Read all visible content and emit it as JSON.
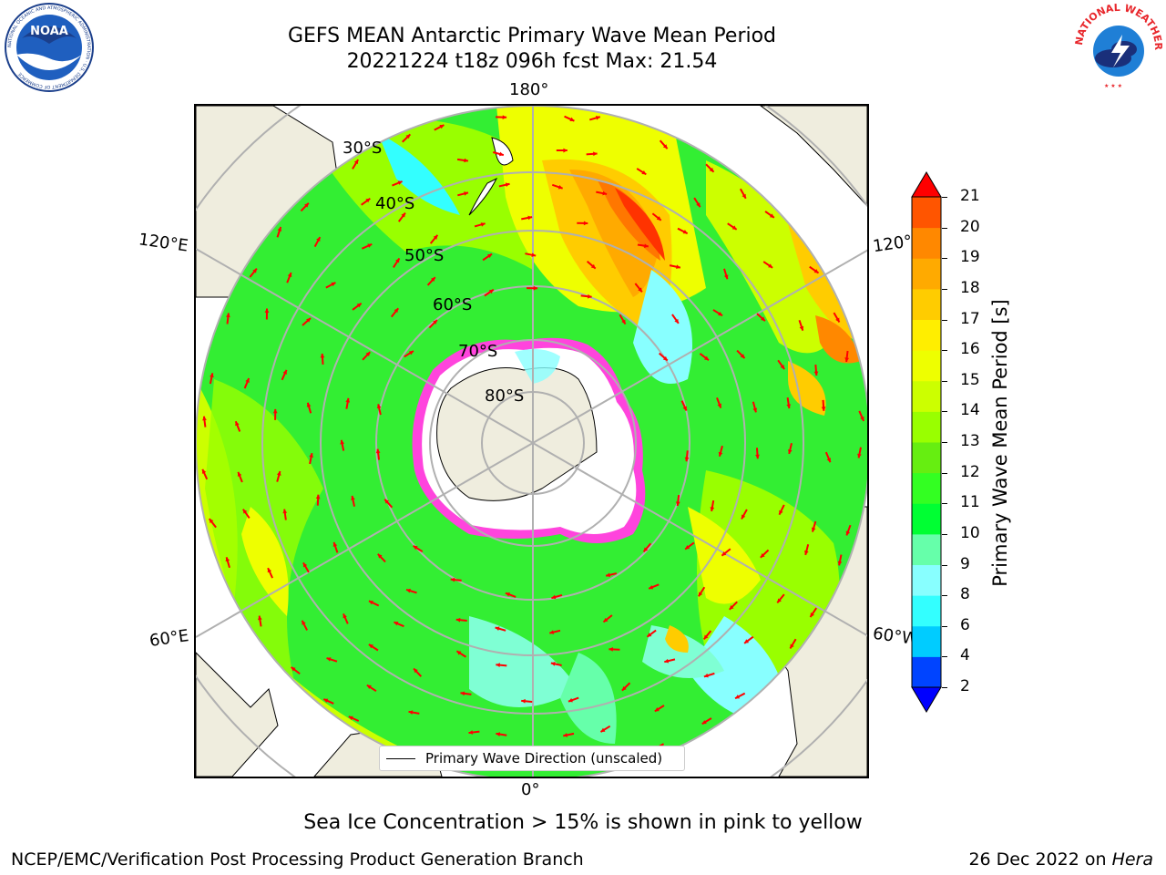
{
  "title": {
    "line1": "GEFS MEAN Antarctic Primary Wave Mean Period",
    "line2": "20221224 t18z 096h fcst   Max: 21.54"
  },
  "map": {
    "longitude_labels": {
      "top": "180°",
      "bottom": "0°",
      "left_upper": "120°E",
      "left_lower": "60°E",
      "right_upper": "120°W",
      "right_lower": "60°W"
    },
    "latitude_labels": [
      "30°S",
      "40°S",
      "50°S",
      "60°S",
      "70°S",
      "80°S"
    ],
    "legend_label": "Primary Wave Direction (unscaled)",
    "colors": {
      "land": "#efedde",
      "ocean_low": "#7fffd4",
      "ocean_mid": "#33ff33",
      "ocean_high": "#ffff00",
      "hot": "#ff3300",
      "ice": "#ff44dd",
      "arrow": "#ff0000"
    }
  },
  "colorbar": {
    "label": "Primary Wave Mean Period [s]",
    "ticks": [
      "2",
      "4",
      "6",
      "8",
      "9",
      "10",
      "11",
      "12",
      "13",
      "14",
      "15",
      "16",
      "17",
      "18",
      "19",
      "20",
      "21"
    ],
    "colors": [
      "#0044ff",
      "#00ccff",
      "#33ffff",
      "#88ffff",
      "#66ffaa",
      "#00ff33",
      "#33ff22",
      "#66ee11",
      "#99ff00",
      "#ccff00",
      "#eeff00",
      "#ffee00",
      "#ffcc00",
      "#ffaa00",
      "#ff8800",
      "#ff5500",
      "#ff2200"
    ],
    "under_color": "#0000ff",
    "over_color": "#ff0000"
  },
  "caption": "Sea Ice Concentration > 15% is shown in pink to yellow",
  "footer": {
    "left": "NCEP/EMC/Verification Post Processing Product Generation Branch",
    "right_date": "26 Dec 2022 on ",
    "right_machine": "Hera"
  },
  "logos": {
    "left_text": "NOAA",
    "left_ring": "NATIONAL OCEANIC AND ATMOSPHERIC ADMINISTRATION · U.S. DEPARTMENT OF COMMERCE",
    "right_ring": "NATIONAL WEATHER SERVICE"
  }
}
